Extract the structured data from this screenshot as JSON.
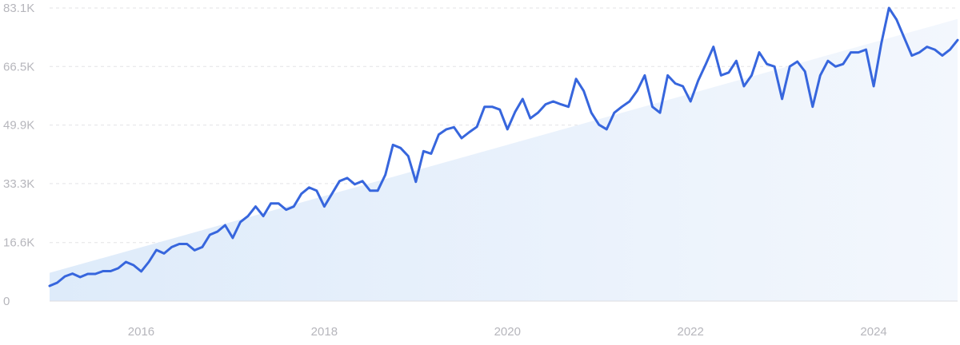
{
  "chart_data": {
    "type": "line",
    "title": "",
    "xlabel": "",
    "ylabel": "",
    "x_range": [
      "2015-01",
      "2024-10"
    ],
    "ylim": [
      0,
      83100
    ],
    "grid": true,
    "legend": "none",
    "y_ticks": [
      {
        "value": 0,
        "label": "0"
      },
      {
        "value": 16600,
        "label": "16.6K"
      },
      {
        "value": 33300,
        "label": "33.3K"
      },
      {
        "value": 49900,
        "label": "49.9K"
      },
      {
        "value": 66500,
        "label": "66.5K"
      },
      {
        "value": 83100,
        "label": "83.1K"
      }
    ],
    "x_ticks": [
      {
        "value": "2016-01",
        "label": "2016"
      },
      {
        "value": "2018-01",
        "label": "2018"
      },
      {
        "value": "2020-01",
        "label": "2020"
      },
      {
        "value": "2022-01",
        "label": "2022"
      },
      {
        "value": "2024-01",
        "label": "2024"
      }
    ],
    "trend": {
      "start": {
        "x": "2015-01",
        "y": 8000
      },
      "end": {
        "x": "2024-10",
        "y": 80000
      }
    },
    "series": [
      {
        "color": "#3766dd",
        "points": [
          [
            "2015-01",
            4300
          ],
          [
            "2015-02",
            5200
          ],
          [
            "2015-03",
            7000
          ],
          [
            "2015-04",
            7800
          ],
          [
            "2015-05",
            6800
          ],
          [
            "2015-06",
            7700
          ],
          [
            "2015-07",
            7700
          ],
          [
            "2015-08",
            8500
          ],
          [
            "2015-09",
            8500
          ],
          [
            "2015-10",
            9300
          ],
          [
            "2015-11",
            11100
          ],
          [
            "2015-12",
            10200
          ],
          [
            "2016-01",
            8400
          ],
          [
            "2016-02",
            11100
          ],
          [
            "2016-03",
            14500
          ],
          [
            "2016-04",
            13500
          ],
          [
            "2016-05",
            15300
          ],
          [
            "2016-06",
            16200
          ],
          [
            "2016-07",
            16200
          ],
          [
            "2016-08",
            14400
          ],
          [
            "2016-09",
            15300
          ],
          [
            "2016-10",
            18800
          ],
          [
            "2016-11",
            19700
          ],
          [
            "2016-12",
            21500
          ],
          [
            "2017-01",
            17900
          ],
          [
            "2017-02",
            22400
          ],
          [
            "2017-03",
            24100
          ],
          [
            "2017-04",
            26800
          ],
          [
            "2017-05",
            24100
          ],
          [
            "2017-06",
            27700
          ],
          [
            "2017-07",
            27700
          ],
          [
            "2017-08",
            25900
          ],
          [
            "2017-09",
            26800
          ],
          [
            "2017-10",
            30400
          ],
          [
            "2017-11",
            32200
          ],
          [
            "2017-12",
            31300
          ],
          [
            "2018-01",
            26800
          ],
          [
            "2018-02",
            30400
          ],
          [
            "2018-03",
            34000
          ],
          [
            "2018-04",
            34900
          ],
          [
            "2018-05",
            33100
          ],
          [
            "2018-06",
            34000
          ],
          [
            "2018-07",
            31300
          ],
          [
            "2018-08",
            31300
          ],
          [
            "2018-09",
            35800
          ],
          [
            "2018-10",
            44300
          ],
          [
            "2018-11",
            43400
          ],
          [
            "2018-12",
            41100
          ],
          [
            "2019-01",
            33800
          ],
          [
            "2019-02",
            42500
          ],
          [
            "2019-03",
            41800
          ],
          [
            "2019-04",
            47200
          ],
          [
            "2019-05",
            48700
          ],
          [
            "2019-06",
            49300
          ],
          [
            "2019-07",
            46200
          ],
          [
            "2019-08",
            47900
          ],
          [
            "2019-09",
            49400
          ],
          [
            "2019-10",
            55100
          ],
          [
            "2019-11",
            55100
          ],
          [
            "2019-12",
            54300
          ],
          [
            "2020-01",
            48700
          ],
          [
            "2020-02",
            53600
          ],
          [
            "2020-03",
            57300
          ],
          [
            "2020-04",
            51800
          ],
          [
            "2020-05",
            53400
          ],
          [
            "2020-06",
            55800
          ],
          [
            "2020-07",
            56600
          ],
          [
            "2020-08",
            55800
          ],
          [
            "2020-09",
            55100
          ],
          [
            "2020-10",
            63000
          ],
          [
            "2020-11",
            59600
          ],
          [
            "2020-12",
            53400
          ],
          [
            "2021-01",
            50000
          ],
          [
            "2021-02",
            48700
          ],
          [
            "2021-03",
            53400
          ],
          [
            "2021-04",
            55100
          ],
          [
            "2021-05",
            56600
          ],
          [
            "2021-06",
            59600
          ],
          [
            "2021-07",
            64000
          ],
          [
            "2021-08",
            55100
          ],
          [
            "2021-09",
            53400
          ],
          [
            "2021-10",
            64000
          ],
          [
            "2021-11",
            61700
          ],
          [
            "2021-12",
            60900
          ],
          [
            "2022-01",
            56600
          ],
          [
            "2022-02",
            62500
          ],
          [
            "2022-03",
            67200
          ],
          [
            "2022-04",
            72100
          ],
          [
            "2022-05",
            64000
          ],
          [
            "2022-06",
            64800
          ],
          [
            "2022-07",
            68100
          ],
          [
            "2022-08",
            60900
          ],
          [
            "2022-09",
            64000
          ],
          [
            "2022-10",
            70500
          ],
          [
            "2022-11",
            67200
          ],
          [
            "2022-12",
            66500
          ],
          [
            "2023-01",
            57300
          ],
          [
            "2023-02",
            66500
          ],
          [
            "2023-03",
            67900
          ],
          [
            "2023-04",
            65100
          ],
          [
            "2023-05",
            55100
          ],
          [
            "2023-06",
            64000
          ],
          [
            "2023-07",
            68100
          ],
          [
            "2023-08",
            66500
          ],
          [
            "2023-09",
            67200
          ],
          [
            "2023-10",
            70500
          ],
          [
            "2023-11",
            70500
          ],
          [
            "2023-12",
            71300
          ],
          [
            "2024-01",
            60900
          ],
          [
            "2024-02",
            73000
          ],
          [
            "2024-03",
            83100
          ],
          [
            "2024-04",
            79800
          ],
          [
            "2024-05",
            74700
          ],
          [
            "2024-06",
            69600
          ],
          [
            "2024-07",
            70500
          ],
          [
            "2024-08",
            72100
          ],
          [
            "2024-09",
            71300
          ],
          [
            "2024-10",
            69600
          ],
          [
            "2024-11",
            71300
          ],
          [
            "2024-12",
            74000
          ]
        ]
      }
    ]
  },
  "style": {
    "line_color": "#3766dd",
    "fill_color": "#e6f0fb",
    "grid_color": "#e3e3e6",
    "tick_color": "#b6b6bc"
  }
}
